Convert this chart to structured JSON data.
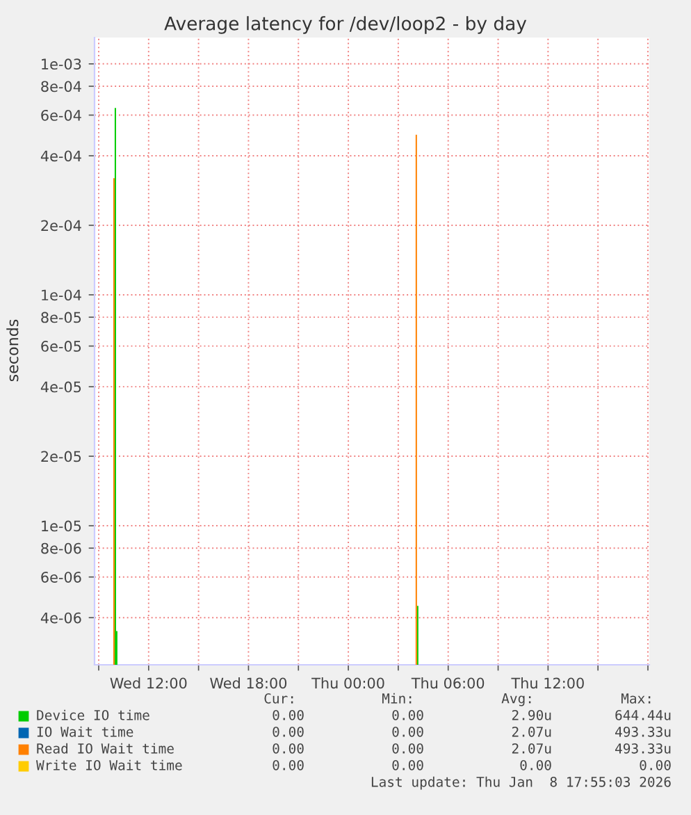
{
  "chart_data": {
    "type": "bar",
    "title": "Average latency for /dev/loop2 - by day",
    "ylabel": "seconds",
    "log": "y",
    "grid": true,
    "legend": "bottom",
    "xlim": [
      "2026-01-07T08:45",
      "2026-01-08T18:05"
    ],
    "xticks": [
      {
        "value": "2026-01-07T09:00",
        "label": null
      },
      {
        "value": "2026-01-07T12:00",
        "label": "Wed 12:00"
      },
      {
        "value": "2026-01-07T15:00",
        "label": null
      },
      {
        "value": "2026-01-07T18:00",
        "label": "Wed 18:00"
      },
      {
        "value": "2026-01-07T21:00",
        "label": null
      },
      {
        "value": "2026-01-08T00:00",
        "label": "Thu 00:00"
      },
      {
        "value": "2026-01-08T03:00",
        "label": null
      },
      {
        "value": "2026-01-08T06:00",
        "label": "Thu 06:00"
      },
      {
        "value": "2026-01-08T09:00",
        "label": null
      },
      {
        "value": "2026-01-08T12:00",
        "label": "Thu 12:00"
      },
      {
        "value": "2026-01-08T15:00",
        "label": null
      },
      {
        "value": "2026-01-08T18:00",
        "label": null
      }
    ],
    "ylim": [
      2.5e-06,
      0.0013
    ],
    "yticks": [
      {
        "value": 4e-06,
        "label": "4e-06"
      },
      {
        "value": 6e-06,
        "label": "6e-06"
      },
      {
        "value": 8e-06,
        "label": "8e-06"
      },
      {
        "value": 1e-05,
        "label": "1e-05"
      },
      {
        "value": 2e-05,
        "label": "2e-05"
      },
      {
        "value": 4e-05,
        "label": "4e-05"
      },
      {
        "value": 6e-05,
        "label": "6e-05"
      },
      {
        "value": 8e-05,
        "label": "8e-05"
      },
      {
        "value": 0.0001,
        "label": "1e-04"
      },
      {
        "value": 0.0002,
        "label": "2e-04"
      },
      {
        "value": 0.0004,
        "label": "4e-04"
      },
      {
        "value": 0.0006,
        "label": "6e-04"
      },
      {
        "value": 0.0008,
        "label": "8e-04"
      },
      {
        "value": 0.001,
        "label": "1e-03"
      }
    ],
    "series": [
      {
        "name": "Device IO time",
        "color": "#00cc00",
        "x": [
          "2026-01-07T10:00",
          "2026-01-07T10:05",
          "2026-01-08T04:10"
        ],
        "values": [
          0.000644,
          3.5e-06,
          4.5e-06
        ]
      },
      {
        "name": "IO Wait time",
        "color": "#0066b3"
      },
      {
        "name": "Read IO Wait time",
        "color": "#ff8000",
        "x": [
          "2026-01-07T09:55",
          "2026-01-08T04:05"
        ],
        "values": [
          0.00032,
          0.000493
        ]
      },
      {
        "name": "Write IO Wait time",
        "color": "#ffcc00"
      }
    ],
    "annotations": [
      "Cur:",
      "Min:",
      "Avg:",
      "Max:",
      "0.00",
      "0.00",
      "2.90u",
      "644.44u",
      "0.00",
      "0.00",
      "2.07u",
      "493.33u",
      "0.00",
      "0.00",
      "2.07u",
      "493.33u",
      "0.00",
      "0.00",
      "0.00",
      "0.00",
      "Last update: Thu Jan  8 17:55:03 2026"
    ]
  }
}
